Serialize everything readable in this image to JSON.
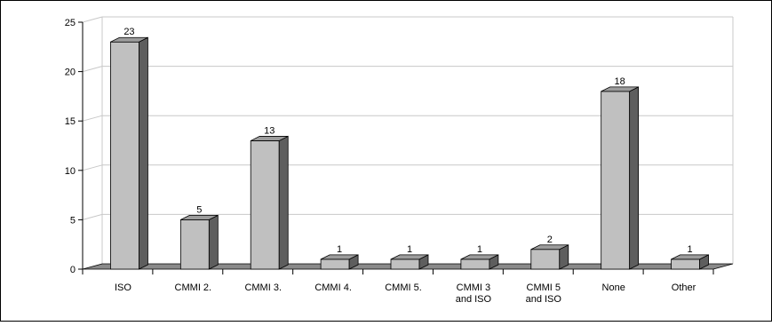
{
  "chart_data": {
    "type": "bar",
    "categories": [
      [
        "ISO"
      ],
      [
        "CMMI 2."
      ],
      [
        "CMMI 3."
      ],
      [
        "CMMI 4."
      ],
      [
        "CMMI 5."
      ],
      [
        "CMMI 3",
        "and ISO"
      ],
      [
        "CMMI 5",
        "and ISO"
      ],
      [
        "None"
      ],
      [
        "Other"
      ]
    ],
    "values": [
      23,
      5,
      13,
      1,
      1,
      1,
      2,
      18,
      1
    ],
    "data_labels": [
      "23",
      "5",
      "13",
      "1",
      "1",
      "1",
      "2",
      "18",
      "1"
    ],
    "yticks": [
      "0",
      "5",
      "10",
      "15",
      "20",
      "25"
    ],
    "ylim": [
      0,
      25
    ],
    "grid": true,
    "style": "3d",
    "colors": {
      "bar_front": "#c0c0c0",
      "bar_side": "#5e5e5e",
      "bar_top": "#9c9c9c",
      "floor": "#8a8a8a",
      "grid": "#c8c8c8",
      "axis": "#000000"
    }
  }
}
